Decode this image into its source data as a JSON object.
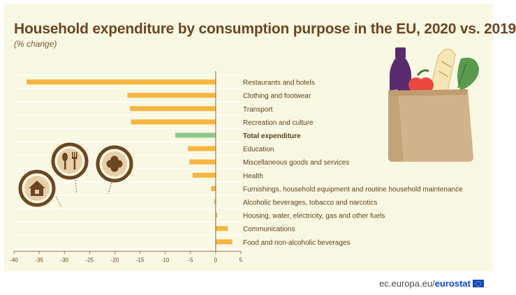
{
  "title": "Household expenditure by consumption purpose in the EU, 2020 vs. 2019",
  "subtitle": "(% change)",
  "footer": {
    "site": "ec.europa.eu/",
    "brand": "eurostat"
  },
  "colors": {
    "bar": "#f9b541",
    "highlight": "#8cc98f",
    "axis": "#8a6a45",
    "label": "#5f3f1a",
    "grid": "#ffffff",
    "icon_ring": "#6b4722"
  },
  "icons": [
    "house-icon",
    "fork-spoon-icon",
    "first-aid-cross-icon",
    "shopping-bag-illustration"
  ],
  "chart_data": {
    "type": "bar",
    "orientation": "horizontal",
    "categories": [
      "Restaurants and hotels",
      "Clothing and footwear",
      "Transport",
      "Recreation and culture",
      "Total expenditure",
      "Education",
      "Miscellaneous goods and services",
      "Health",
      "Furnishings, household equipment and routine household maintenance",
      "Alcoholic beverages, tobacco and narcotics",
      "Housing, water, electricity, gas and other fuels",
      "Communications",
      "Food and non-alcoholic beverages"
    ],
    "values": [
      -37.5,
      -17.5,
      -17.0,
      -16.8,
      -8.0,
      -5.5,
      -5.2,
      -4.6,
      -0.9,
      -0.3,
      0.3,
      2.4,
      3.3
    ],
    "highlight": "Total expenditure",
    "xlim": [
      -40,
      5
    ],
    "xticks": [
      -40,
      -35,
      -30,
      -25,
      -20,
      -15,
      -10,
      -5,
      0,
      5
    ],
    "grid": true
  }
}
